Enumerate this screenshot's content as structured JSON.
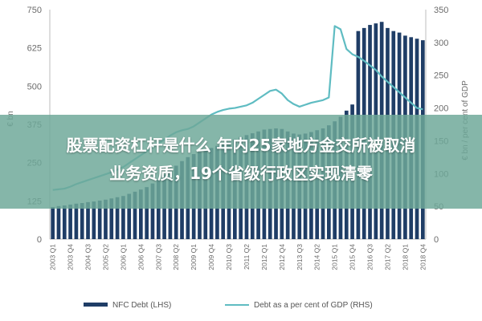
{
  "overlay": {
    "line1": "股票配资杠杆是什么 年内25家地方金交所被取消",
    "line2": "业务资质，19个省级行政区实现清零"
  },
  "chart_data": {
    "type": "bar+line",
    "title": "",
    "ylabel_left": "€ bn",
    "ylabel_right": "€ bn / per cent of GDP",
    "ylim_left": [
      0,
      750
    ],
    "ylim_right": [
      0,
      350
    ],
    "yticks_left": [
      "0",
      "125",
      "250",
      "375",
      "500",
      "625",
      "750"
    ],
    "yticks_right": [
      "0",
      "50",
      "100",
      "150",
      "200",
      "250",
      "300",
      "350"
    ],
    "xtick_labels": [
      "2003 Q1",
      "2003 Q4",
      "2004 Q3",
      "2005 Q2",
      "2006 Q1",
      "2006 Q4",
      "2007 Q3",
      "2008 Q2",
      "2009 Q1",
      "2009 Q4",
      "2010 Q3",
      "2011 Q2",
      "2012 Q1",
      "2012 Q4",
      "2013 Q3",
      "2014 Q2",
      "2015 Q1",
      "2015 Q4",
      "2016 Q3",
      "2017 Q2",
      "2018 Q1",
      "2018 Q4"
    ],
    "categories": [
      "2003 Q1",
      "2003 Q2",
      "2003 Q3",
      "2003 Q4",
      "2004 Q1",
      "2004 Q2",
      "2004 Q3",
      "2004 Q4",
      "2005 Q1",
      "2005 Q2",
      "2005 Q3",
      "2005 Q4",
      "2006 Q1",
      "2006 Q2",
      "2006 Q3",
      "2006 Q4",
      "2007 Q1",
      "2007 Q2",
      "2007 Q3",
      "2007 Q4",
      "2008 Q1",
      "2008 Q2",
      "2008 Q3",
      "2008 Q4",
      "2009 Q1",
      "2009 Q2",
      "2009 Q3",
      "2009 Q4",
      "2010 Q1",
      "2010 Q2",
      "2010 Q3",
      "2010 Q4",
      "2011 Q1",
      "2011 Q2",
      "2011 Q3",
      "2011 Q4",
      "2012 Q1",
      "2012 Q2",
      "2012 Q3",
      "2012 Q4",
      "2013 Q1",
      "2013 Q2",
      "2013 Q3",
      "2013 Q4",
      "2014 Q1",
      "2014 Q2",
      "2014 Q3",
      "2014 Q4",
      "2015 Q1",
      "2015 Q2",
      "2015 Q3",
      "2015 Q4",
      "2016 Q1",
      "2016 Q2",
      "2016 Q3",
      "2016 Q4",
      "2017 Q1",
      "2017 Q2",
      "2017 Q3",
      "2017 Q4",
      "2018 Q1",
      "2018 Q2",
      "2018 Q3",
      "2018 Q4"
    ],
    "series": [
      {
        "name": "NFC Debt (LHS)",
        "type": "bar",
        "axis": "left",
        "color": "#1f3d66",
        "values": [
          105,
          108,
          110,
          113,
          116,
          118,
          121,
          123,
          126,
          129,
          133,
          137,
          141,
          148,
          155,
          162,
          170,
          182,
          195,
          210,
          225,
          240,
          255,
          268,
          278,
          285,
          292,
          298,
          305,
          312,
          318,
          326,
          334,
          340,
          346,
          352,
          358,
          360,
          362,
          360,
          352,
          345,
          342,
          345,
          350,
          356,
          362,
          372,
          385,
          400,
          420,
          440,
          680,
          690,
          700,
          705,
          710,
          690,
          680,
          675,
          665,
          660,
          655,
          650
        ]
      },
      {
        "name": "Debt as a per cent of GDP (RHS)",
        "type": "line",
        "axis": "right",
        "color": "#5fbcc2",
        "values": [
          75,
          76,
          77,
          80,
          84,
          87,
          90,
          93,
          96,
          99,
          102,
          106,
          110,
          116,
          122,
          128,
          134,
          140,
          146,
          152,
          158,
          163,
          166,
          168,
          172,
          178,
          184,
          190,
          194,
          197,
          199,
          200,
          202,
          204,
          208,
          214,
          220,
          226,
          228,
          222,
          212,
          206,
          202,
          205,
          208,
          210,
          212,
          216,
          325,
          320,
          290,
          282,
          278,
          272,
          265,
          258,
          248,
          240,
          232,
          224,
          216,
          208,
          200,
          198
        ]
      }
    ],
    "legend": {
      "position": "bottom",
      "entries": [
        "NFC Debt (LHS)",
        "Debt as a per cent of GDP (RHS)"
      ]
    },
    "grid": false
  }
}
